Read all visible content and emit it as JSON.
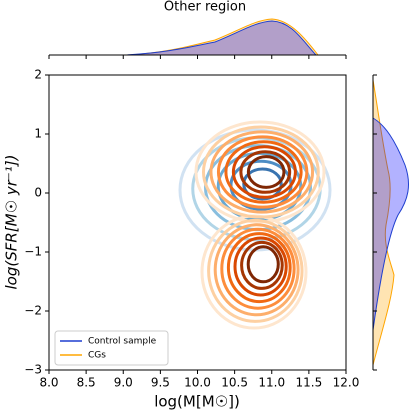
{
  "chart_data": {
    "type": "contour",
    "title": "Other region",
    "xlabel": "log(M[M☉])",
    "ylabel": "log(SFR[M☉ yr⁻¹])",
    "series": [
      {
        "name": "Control sample",
        "color": "#1f3fcf"
      },
      {
        "name": "CGs",
        "color": "#ffa500"
      }
    ],
    "xlim": [
      8,
      12
    ],
    "ylim": [
      -3,
      2
    ],
    "xticks": [
      {
        "value": 8,
        "label": "8.0"
      },
      8.5,
      {
        "value": 9,
        "label": "9.0"
      },
      9.5,
      {
        "value": 10,
        "label": "10.0"
      },
      10.5,
      {
        "value": 11,
        "label": "11.0"
      },
      11.5,
      {
        "value": 12,
        "label": "12.0"
      }
    ],
    "yticks": [
      2,
      1,
      0,
      {
        "value": -1,
        "label": "−1"
      },
      {
        "value": -2,
        "label": "−2"
      },
      {
        "value": -3,
        "label": "−3"
      }
    ],
    "legend": "lower left"
  }
}
